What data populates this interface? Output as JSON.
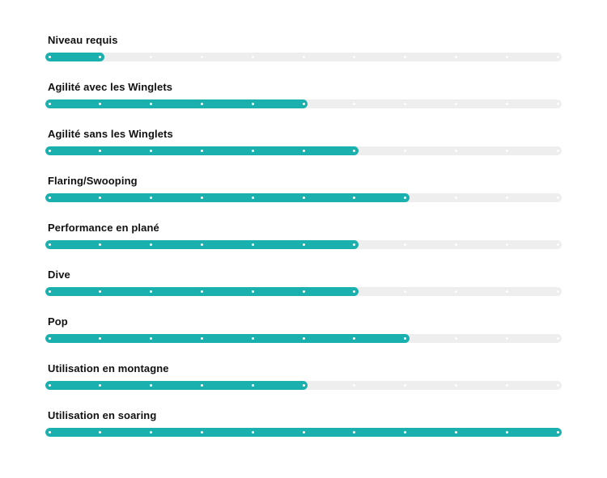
{
  "colors": {
    "fill": "#1ab0ad",
    "track": "#eeeeee",
    "label": "#111111"
  },
  "scale_max": 10,
  "ratings": [
    {
      "label": "Niveau requis",
      "value": 1
    },
    {
      "label": "Agilité avec les Winglets",
      "value": 5
    },
    {
      "label": "Agilité sans les Winglets",
      "value": 6
    },
    {
      "label": "Flaring/Swooping",
      "value": 7
    },
    {
      "label": "Performance en plané",
      "value": 6
    },
    {
      "label": "Dive",
      "value": 6
    },
    {
      "label": "Pop",
      "value": 7
    },
    {
      "label": "Utilisation en montagne",
      "value": 5
    },
    {
      "label": "Utilisation en soaring",
      "value": 10
    }
  ]
}
